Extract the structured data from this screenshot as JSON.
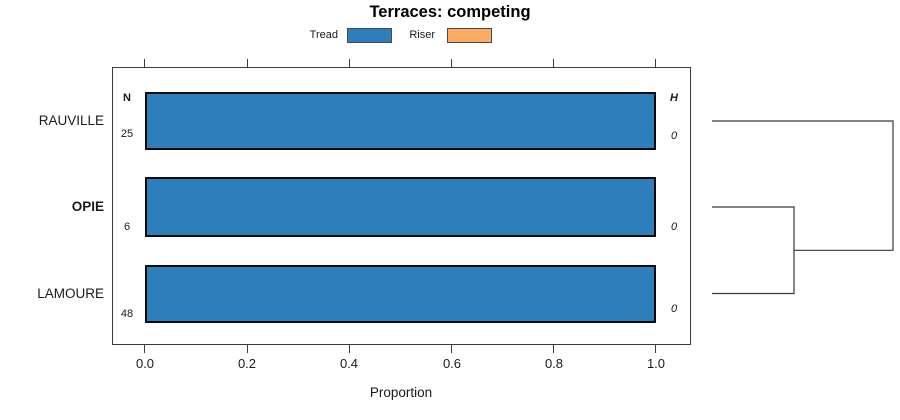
{
  "chart_data": {
    "type": "bar",
    "orientation": "horizontal",
    "stacked": true,
    "title": "Terraces: competing",
    "xlabel": "Proportion",
    "xlim": [
      0,
      1.07
    ],
    "xtick_values": [
      0.0,
      0.2,
      0.4,
      0.6,
      0.8,
      1.0
    ],
    "xtick_labels": [
      "0.0",
      "0.2",
      "0.4",
      "0.6",
      "0.8",
      "1.0"
    ],
    "categories": [
      "RAUVILLE",
      "OPIE",
      "LAMOURE"
    ],
    "emphasized_category": "OPIE",
    "series": [
      {
        "name": "Tread",
        "color": "#2E7EBC",
        "values": [
          1.0,
          1.0,
          1.0
        ]
      },
      {
        "name": "Riser",
        "color": "#FBAB63",
        "values": [
          0.0,
          0.0,
          0.0
        ]
      }
    ],
    "bar_border_color": "#0a0a0a",
    "columns": {
      "n": {
        "header": "N",
        "values": [
          25,
          6,
          48
        ]
      },
      "h": {
        "header": "H",
        "values": [
          0,
          0,
          0
        ]
      }
    },
    "legend_position": "top-center",
    "grid": false,
    "dendrogram": {
      "position": "right",
      "leaf_order": [
        "RAUVILLE",
        "OPIE",
        "LAMOURE"
      ],
      "merges": [
        {
          "members": [
            "OPIE",
            "LAMOURE"
          ],
          "height": 0
        },
        {
          "members": [
            "RAUVILLE",
            "OPIE+LAMOURE"
          ],
          "height": 0
        }
      ]
    }
  }
}
